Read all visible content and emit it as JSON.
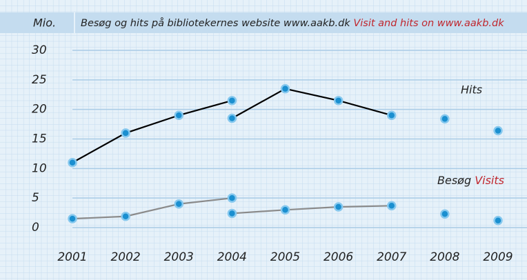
{
  "chart_data": {
    "type": "line",
    "title": "Besøg og hits på bibliotekernes website www.aakb.dk",
    "title_en": "Visit and hits on www.aakb.dk",
    "ylabel": "Mio.",
    "xlim": [
      2001,
      2009
    ],
    "xticks": [
      2001,
      2002,
      2003,
      2004,
      2005,
      2006,
      2007,
      2008,
      2009
    ],
    "ylim": [
      0,
      30
    ],
    "yticks": [
      0,
      5,
      10,
      15,
      20,
      25,
      30
    ],
    "grid": true,
    "marker_color": "#1a8fd0",
    "series": [
      {
        "name": "Hits",
        "color": "#000000",
        "x": [
          2001,
          2002,
          2003,
          2004,
          null,
          2004,
          2005,
          2006,
          2007,
          null,
          2008,
          null,
          2009
        ],
        "values": [
          11,
          16,
          19,
          21.5,
          null,
          18.5,
          23.5,
          21.5,
          19,
          null,
          18.4,
          null,
          16.4
        ]
      },
      {
        "name": "Besøg",
        "name_en": "Visits",
        "color": "#8a8a8a",
        "x": [
          2001,
          2002,
          2003,
          2004,
          null,
          2004,
          2005,
          2006,
          2007,
          null,
          2008,
          null,
          2009
        ],
        "values": [
          1.5,
          1.9,
          4,
          5,
          null,
          2.4,
          3,
          3.5,
          3.7,
          null,
          2.3,
          null,
          1.2
        ]
      }
    ]
  }
}
